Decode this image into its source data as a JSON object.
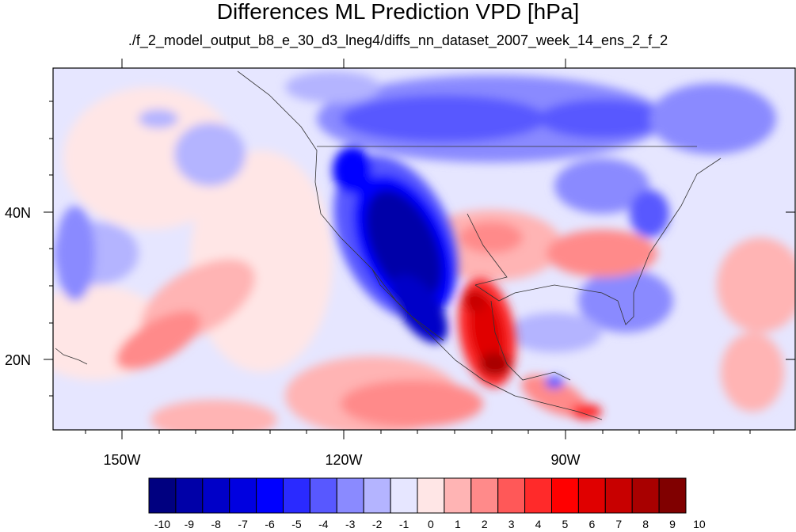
{
  "title": "Differences ML Prediction VPD [hPa]",
  "subtitle": "./f_2_model_output_b8_e_30_d3_lneg4/diffs_nn_dataset_2007_week_14_ens_2_f_2",
  "map": {
    "projection": "cylindrical equidistant",
    "lon_range": [
      -160,
      -110,
      -100,
      -80,
      -60
    ],
    "lon_extent": [
      -161.5,
      -57.5
    ],
    "lat_extent": [
      10,
      59
    ],
    "lat_ticks": [
      {
        "value": 40,
        "label": "40N"
      },
      {
        "value": 20,
        "label": "20N"
      }
    ],
    "lon_ticks": [
      {
        "value": -150,
        "label": "150W"
      },
      {
        "value": -120,
        "label": "120W"
      },
      {
        "value": -90,
        "label": "90W"
      }
    ],
    "fill_description": "Strong negative (blue) differences over the western US interior and Baja; strong positive (red) over the Gulf coast of Mexico and southern Mexico; negative band over Canada; positive patches over the eastern Pacific near 20N."
  },
  "colorbar": {
    "labels": [
      "-10",
      "-9",
      "-8",
      "-7",
      "-6",
      "-5",
      "-4",
      "-3",
      "-2",
      "-1",
      "0",
      "1",
      "2",
      "3",
      "4",
      "5",
      "6",
      "7",
      "8",
      "9",
      "10"
    ],
    "colors": [
      "#000080",
      "#0000a8",
      "#0000c8",
      "#0000e0",
      "#0000ff",
      "#2a2aff",
      "#5858ff",
      "#8a8aff",
      "#b4b4ff",
      "#e6e6ff",
      "#ffe6e6",
      "#ffb4b4",
      "#ff8a8a",
      "#ff5858",
      "#ff2a2a",
      "#ff0000",
      "#e00000",
      "#c80000",
      "#a80000",
      "#800000"
    ]
  }
}
